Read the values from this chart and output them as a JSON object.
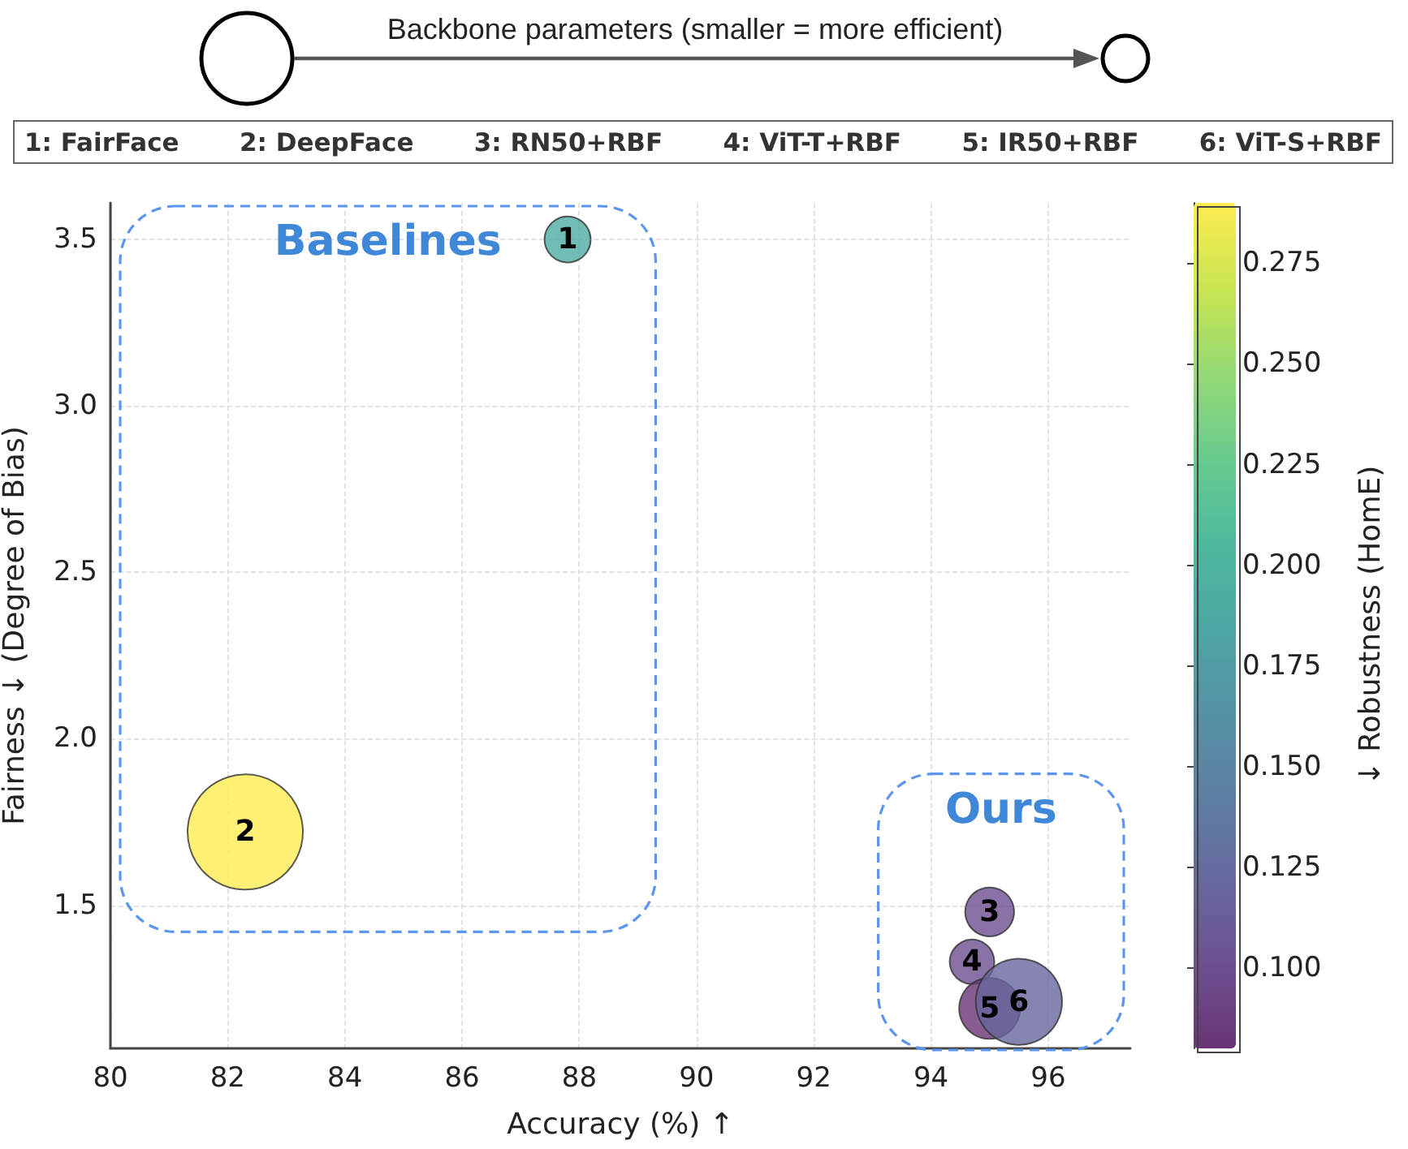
{
  "chart_data": {
    "type": "bubble",
    "legend_title": "Backbone parameters (smaller = more efficient)",
    "annotations": [
      "1: FairFace",
      "2: DeepFace",
      "3: RN50+RBF",
      "4: ViT-T+RBF",
      "5: IR50+RBF",
      "6: ViT-S+RBF",
      "Baselines",
      "Ours",
      {
        "text": "1",
        "x": 87.8,
        "y": 3.5
      },
      {
        "text": "2",
        "x": 82.3,
        "y": 1.72
      },
      {
        "text": "3",
        "x": 95.0,
        "y": 1.48
      },
      {
        "text": "4",
        "x": 94.7,
        "y": 1.33
      },
      {
        "text": "5",
        "x": 95.0,
        "y": 1.19
      },
      {
        "text": "6",
        "x": 95.5,
        "y": 1.21
      }
    ],
    "xlabel": "Accuracy (%) ↑",
    "ylabel": "Fairness ↓ (Degree of Bias)",
    "clabel": "↓ Robustness (HomE)",
    "x": [
      87.8,
      82.3,
      95.0,
      94.7,
      95.0,
      95.5
    ],
    "values": [
      3.5,
      1.72,
      1.48,
      1.33,
      1.19,
      1.21
    ],
    "sizes": [
      0.16,
      1,
      0.18,
      0.15,
      0.28,
      0.56
    ],
    "cvalues": [
      0.19,
      0.29,
      0.1,
      0.1,
      0.08,
      0.12
    ],
    "xlim": [
      80,
      97.4
    ],
    "ylim": [
      1.07,
      3.61
    ],
    "xticks": [
      80,
      82,
      84,
      86,
      88,
      90,
      92,
      94,
      96
    ],
    "yticks": [
      1.5,
      {
        "value": 2,
        "label": "2.0"
      },
      2.5,
      {
        "value": 3,
        "label": "3.0"
      },
      3.5
    ],
    "clim": [
      0.08,
      0.29
    ],
    "cticks": [
      {
        "value": 0.1,
        "label": "0.100"
      },
      0.125,
      {
        "value": 0.15,
        "label": "0.150"
      },
      0.175,
      {
        "value": 0.2,
        "label": "0.200"
      },
      0.225,
      {
        "value": 0.25,
        "label": "0.250"
      },
      0.275
    ],
    "grid": true
  }
}
